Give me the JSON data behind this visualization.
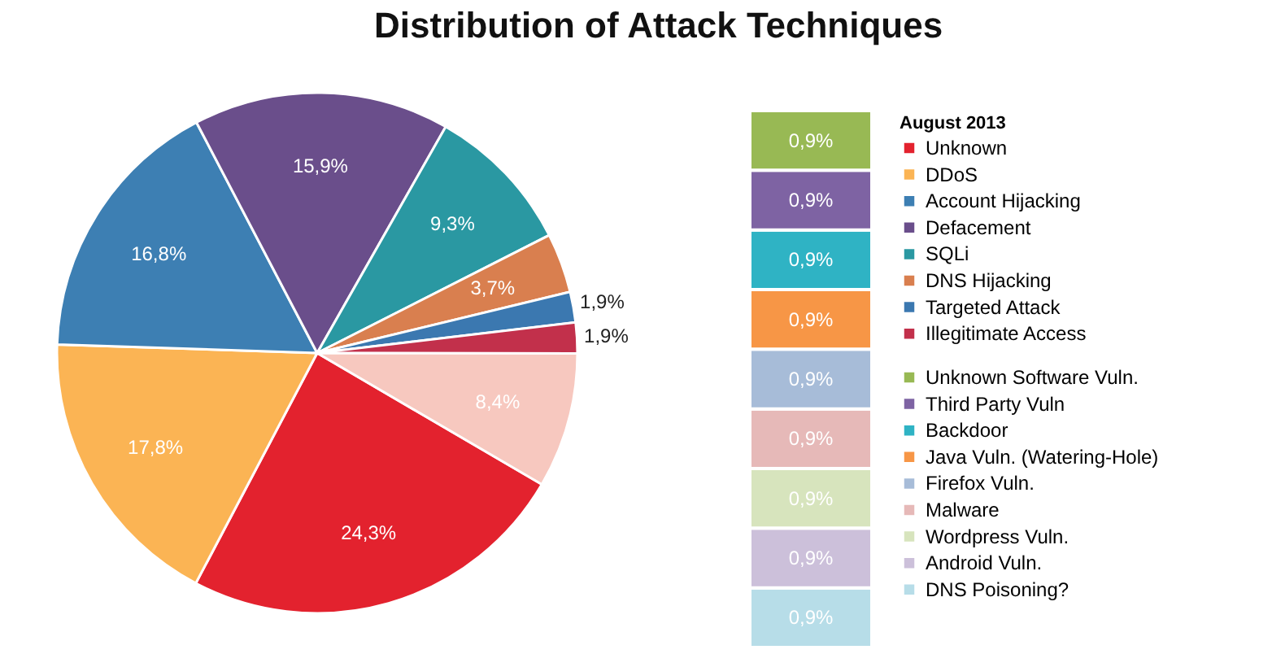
{
  "chart_data": [
    {
      "type": "pie",
      "title": "Distribution of Attack Techniques",
      "legend_title": "August 2013",
      "legend": "right",
      "categories": [
        "Unknown",
        "DDoS",
        "Account Hijacking",
        "Defacement",
        "SQLi",
        "DNS Hijacking",
        "Targeted Attack",
        "Illegitimate Access",
        null
      ],
      "values": [
        24.3,
        17.8,
        16.8,
        15.9,
        9.3,
        3.7,
        1.9,
        1.9,
        8.4
      ],
      "colors": [
        "#e3222e",
        "#fbb454",
        "#3d7fb3",
        "#6a4e8b",
        "#2a98a2",
        "#d97f4f",
        "#3b78b0",
        "#c2304b",
        "#f7c8bf"
      ],
      "value_labels": [
        "24,3%",
        "17,8%",
        "16,8%",
        "15,9%",
        "9,3%",
        "3,7%",
        "1,9%",
        "1,9%",
        "8,4%"
      ]
    },
    {
      "type": "bar",
      "stacked": true,
      "categories": [
        null
      ],
      "legend": "right",
      "series": [
        {
          "name": "DNS Poisoning?",
          "color": "#b7dde8",
          "values": [
            0.9
          ],
          "value_labels": [
            "0,9%"
          ]
        },
        {
          "name": "Android Vuln.",
          "color": "#ccc0da",
          "values": [
            0.9
          ],
          "value_labels": [
            "0,9%"
          ]
        },
        {
          "name": "Wordpress Vuln.",
          "color": "#d7e4bd",
          "values": [
            0.9
          ],
          "value_labels": [
            "0,9%"
          ]
        },
        {
          "name": "Malware",
          "color": "#e6b9b8",
          "values": [
            0.9
          ],
          "value_labels": [
            "0,9%"
          ]
        },
        {
          "name": "Firefox Vuln.",
          "color": "#a7bcd8",
          "values": [
            0.9
          ],
          "value_labels": [
            "0,9%"
          ]
        },
        {
          "name": "Java Vuln. (Watering-Hole)",
          "color": "#f79646",
          "values": [
            0.9
          ],
          "value_labels": [
            "0,9%"
          ]
        },
        {
          "name": "Backdoor",
          "color": "#2fb3c4",
          "values": [
            0.9
          ],
          "value_labels": [
            "0,9%"
          ]
        },
        {
          "name": "Third Party Vuln",
          "color": "#7e63a3",
          "values": [
            0.9
          ],
          "value_labels": [
            "0,9%"
          ]
        },
        {
          "name": "Unknown Software Vuln.",
          "color": "#98b954",
          "values": [
            0.9
          ],
          "value_labels": [
            "0,9%"
          ]
        }
      ]
    }
  ]
}
